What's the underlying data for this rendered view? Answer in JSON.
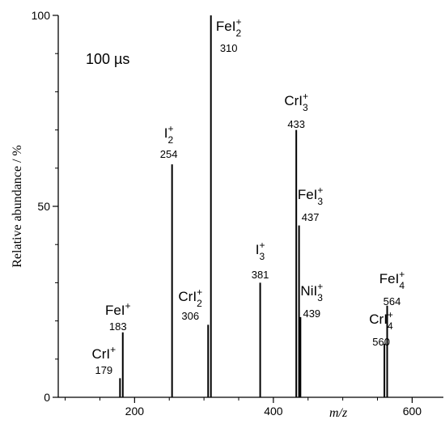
{
  "chart_data": {
    "type": "bar",
    "title": "",
    "annotation": "100 µs",
    "xlabel_italic": "m/z",
    "ylabel": "Relative abundance / %",
    "xlim": [
      90,
      645
    ],
    "ylim": [
      0,
      100
    ],
    "x_ticks": [
      200,
      400,
      600
    ],
    "y_ticks": [
      0,
      50,
      100
    ],
    "grid": false,
    "peaks": [
      {
        "mz": 179,
        "abundance": 5,
        "ion": "CrI",
        "sub": "",
        "sup": "+",
        "mass_label": "179"
      },
      {
        "mz": 183,
        "abundance": 17,
        "ion": "FeI",
        "sub": "",
        "sup": "+",
        "mass_label": "183"
      },
      {
        "mz": 254,
        "abundance": 61,
        "ion": "I",
        "sub": "2",
        "sup": "+",
        "mass_label": "254"
      },
      {
        "mz": 306,
        "abundance": 19,
        "ion": "CrI",
        "sub": "2",
        "sup": "+",
        "mass_label": "306"
      },
      {
        "mz": 310,
        "abundance": 100,
        "ion": "FeI",
        "sub": "2",
        "sup": "+",
        "mass_label": "310"
      },
      {
        "mz": 381,
        "abundance": 30,
        "ion": "I",
        "sub": "3",
        "sup": "+",
        "mass_label": "381"
      },
      {
        "mz": 433,
        "abundance": 70,
        "ion": "CrI",
        "sub": "3",
        "sup": "+",
        "mass_label": "433"
      },
      {
        "mz": 437,
        "abundance": 45,
        "ion": "FeI",
        "sub": "3",
        "sup": "+",
        "mass_label": "437"
      },
      {
        "mz": 439,
        "abundance": 21,
        "ion": "NiI",
        "sub": "3",
        "sup": "+",
        "mass_label": "439"
      },
      {
        "mz": 560,
        "abundance": 14,
        "ion": "CrI",
        "sub": "4",
        "sup": "+",
        "mass_label": "560"
      },
      {
        "mz": 564,
        "abundance": 24,
        "ion": "FeI",
        "sub": "4",
        "sup": "+",
        "mass_label": "564"
      }
    ]
  }
}
